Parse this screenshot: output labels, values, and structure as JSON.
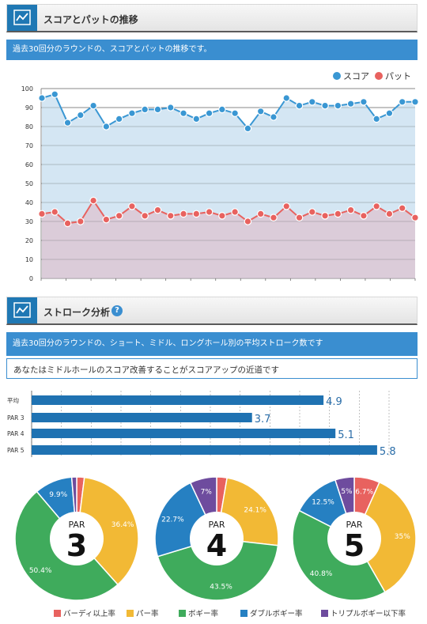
{
  "section1": {
    "title": "スコアとパットの推移",
    "description": "過去30回分のラウンドの、スコアとパットの推移です。",
    "legend": [
      {
        "label": "スコア",
        "color": "#3a97d3"
      },
      {
        "label": "パット",
        "color": "#e8625f"
      }
    ]
  },
  "chart_data": [
    {
      "type": "line",
      "x": [
        1,
        2,
        3,
        4,
        5,
        6,
        7,
        8,
        9,
        10,
        11,
        12,
        13,
        14,
        15,
        16,
        17,
        18,
        19,
        20,
        21,
        22,
        23,
        24,
        25,
        26,
        27,
        28,
        29,
        30
      ],
      "series": [
        {
          "name": "スコア",
          "color": "#3a97d3",
          "values": [
            95,
            97,
            82,
            86,
            91,
            80,
            84,
            87,
            89,
            89,
            90,
            87,
            84,
            87,
            89,
            87,
            79,
            88,
            85,
            95,
            91,
            93,
            91,
            91,
            92,
            93,
            84,
            87,
            93,
            93
          ]
        },
        {
          "name": "パット",
          "color": "#e8625f",
          "values": [
            34,
            35,
            29,
            30,
            41,
            31,
            33,
            38,
            33,
            36,
            33,
            34,
            34,
            35,
            33,
            35,
            30,
            34,
            32,
            38,
            32,
            35,
            33,
            34,
            36,
            33,
            38,
            34,
            37,
            32
          ]
        }
      ],
      "ylim": [
        0,
        100
      ],
      "yticks": [
        0,
        10,
        20,
        30,
        40,
        50,
        60,
        70,
        80,
        90,
        100
      ],
      "grid": true,
      "legend": "top-right"
    },
    {
      "type": "bar",
      "orientation": "horizontal",
      "categories": [
        "平均",
        "PAR 3",
        "PAR 4",
        "PAR 5"
      ],
      "values": [
        4.9,
        3.7,
        5.1,
        5.8
      ],
      "value_labels": [
        "4.9",
        "3.7",
        "5.1",
        "5.8"
      ],
      "xlim": [
        0,
        6
      ],
      "color": "#1f72b2"
    },
    {
      "type": "pie",
      "title": "PAR 3",
      "center_label": "PAR",
      "center_number": "3",
      "values": [
        2,
        36.4,
        50.4,
        9.9,
        1.3
      ],
      "labels": [
        "",
        "36.4%",
        "50.4%",
        "9.9%",
        ""
      ]
    },
    {
      "type": "pie",
      "title": "PAR 4",
      "center_label": "PAR",
      "center_number": "4",
      "values": [
        2.7,
        24.1,
        43.5,
        22.7,
        7
      ],
      "labels": [
        "",
        "24.1%",
        "43.5%",
        "22.7%",
        "7%"
      ]
    },
    {
      "type": "pie",
      "title": "PAR 5",
      "center_label": "PAR",
      "center_number": "5",
      "values": [
        6.7,
        35,
        40.8,
        12.5,
        5
      ],
      "labels": [
        "6.7%",
        "35%",
        "40.8%",
        "12.5%",
        "5%"
      ]
    }
  ],
  "section2": {
    "title": "ストローク分析",
    "help_icon": "?",
    "description": "過去30回分のラウンドの、ショート、ミドル、ロングホール別の平均ストローク数です",
    "advice": "あなたはミドルホールのスコア改善することがスコアアップの近道です"
  },
  "pie_legend": [
    {
      "label": "バーディ以上率",
      "color": "#e8625f"
    },
    {
      "label": "パー率",
      "color": "#f2b935"
    },
    {
      "label": "ボギー率",
      "color": "#3fab5c"
    },
    {
      "label": "ダブルボギー率",
      "color": "#2680c2"
    },
    {
      "label": "トリプルボギー以下率",
      "color": "#6e4c9e"
    }
  ]
}
